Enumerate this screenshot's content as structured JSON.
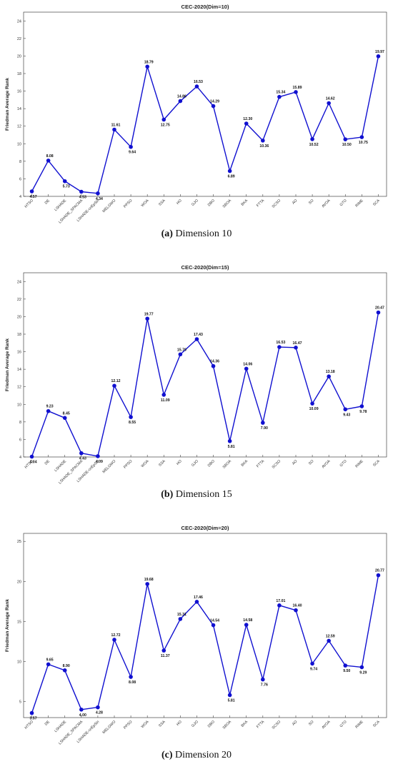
{
  "colors": {
    "series": "#1010d0",
    "axis": "#444444",
    "grid": "#e6e6e6"
  },
  "chart_data": [
    {
      "type": "line",
      "title": "CEC-2020(Dim=10)",
      "ylabel": "Friedman Average Rank",
      "caption_tag": "(a)",
      "caption_text": " Dimension 10",
      "categories": [
        "HTSO",
        "DE",
        "LSHADE",
        "LSHADE_SPACMA",
        "LSHADE-cnEpSin",
        "MELGWO",
        "PPSO",
        "WOA",
        "SSA",
        "HO",
        "GJO",
        "DBO",
        "SBOA",
        "BKA",
        "FTTA",
        "SCSO",
        "AO",
        "SO",
        "AVOA",
        "GTO",
        "RIME",
        "SCA"
      ],
      "values": [
        4.57,
        8.08,
        5.73,
        4.53,
        4.34,
        11.61,
        9.64,
        18.79,
        12.75,
        14.86,
        16.53,
        14.29,
        6.89,
        12.3,
        10.36,
        15.34,
        15.89,
        10.52,
        14.62,
        10.5,
        10.75,
        19.97
      ],
      "labels": [
        "4.57",
        "8.08",
        "5.73",
        "4.53",
        "4.34",
        "11.61",
        "9.64",
        "18.79",
        "12.75",
        "14.86",
        "16.53",
        "14.29",
        "6.89",
        "12.30",
        "10.36",
        "15.34",
        "15.89",
        "10.52",
        "14.62",
        "10.50",
        "10.75",
        "19.97"
      ],
      "ylim": [
        4,
        25
      ],
      "yticks": [
        4,
        6,
        8,
        10,
        12,
        14,
        16,
        18,
        20,
        22,
        24
      ],
      "ytick_labels": [
        "4",
        "6",
        "8",
        "10",
        "12",
        "14",
        "16",
        "18",
        "20",
        "22",
        "24"
      ],
      "grid": false
    },
    {
      "type": "line",
      "title": "CEC-2020(Dim=15)",
      "ylabel": "Friedman Average Rank",
      "caption_tag": "(b)",
      "caption_text": " Dimension 15",
      "categories": [
        "HTSO",
        "DE",
        "LSHADE",
        "LSHADE_SPACMA",
        "LSHADE-cnEpSin",
        "MELGWO",
        "PPSO",
        "WOA",
        "SSA",
        "HO",
        "GJO",
        "DBO",
        "SBOA",
        "BKA",
        "FTTA",
        "SCSO",
        "AO",
        "SO",
        "AVOA",
        "GTO",
        "RIME",
        "SCA"
      ],
      "values": [
        4.04,
        9.23,
        8.45,
        4.43,
        4.09,
        12.12,
        8.55,
        19.77,
        11.09,
        15.7,
        17.43,
        14.36,
        5.81,
        14.06,
        7.9,
        16.53,
        16.47,
        10.09,
        13.18,
        9.43,
        9.78,
        20.47
      ],
      "labels": [
        "4.04",
        "9.23",
        "8.45",
        "4.43",
        "4.09",
        "12.12",
        "8.55",
        "19.77",
        "11.09",
        "15.70",
        "17.43",
        "14.36",
        "5.81",
        "14.06",
        "7.90",
        "16.53",
        "16.47",
        "10.09",
        "13.18",
        "9.43",
        "9.78",
        "20.47"
      ],
      "ylim": [
        4,
        25
      ],
      "yticks": [
        4,
        6,
        8,
        10,
        12,
        14,
        16,
        18,
        20,
        22,
        24
      ],
      "ytick_labels": [
        "4",
        "6",
        "8",
        "10",
        "12",
        "14",
        "16",
        "18",
        "20",
        "22",
        "24"
      ],
      "grid": false
    },
    {
      "type": "line",
      "title": "CEC-2020(Dim=20)",
      "ylabel": "Friedman Average Rank",
      "caption_tag": "(c)",
      "caption_text": " Dimension 20",
      "categories": [
        "HTSO",
        "DE",
        "LSHADE",
        "LSHADE_SPACMA",
        "LSHADE-cnEpSin",
        "MELGWO",
        "PPSO",
        "WOA",
        "SSA",
        "HO",
        "GJO",
        "DBO",
        "SBOA",
        "BKA",
        "FTTA",
        "SCSO",
        "AO",
        "SO",
        "AVOA",
        "GTO",
        "RIME",
        "SCA"
      ],
      "values": [
        3.57,
        9.65,
        8.9,
        4.0,
        4.28,
        12.72,
        8.08,
        19.68,
        11.37,
        15.31,
        17.46,
        14.54,
        5.81,
        14.58,
        7.76,
        17.01,
        16.4,
        9.74,
        12.59,
        9.5,
        9.29,
        20.77
      ],
      "labels": [
        "3.57",
        "9.65",
        "8.90",
        "4.00",
        "4.28",
        "12.72",
        "8.08",
        "19.68",
        "11.37",
        "15.31",
        "17.46",
        "14.54",
        "5.81",
        "14.58",
        "7.76",
        "17.01",
        "16.40",
        "9.74",
        "12.59",
        "9.50",
        "9.29",
        "20.77"
      ],
      "ylim": [
        3,
        26
      ],
      "yticks": [
        5,
        10,
        15,
        20,
        25
      ],
      "ytick_labels": [
        "5",
        "10",
        "15",
        "20",
        "25"
      ],
      "grid": false
    }
  ]
}
